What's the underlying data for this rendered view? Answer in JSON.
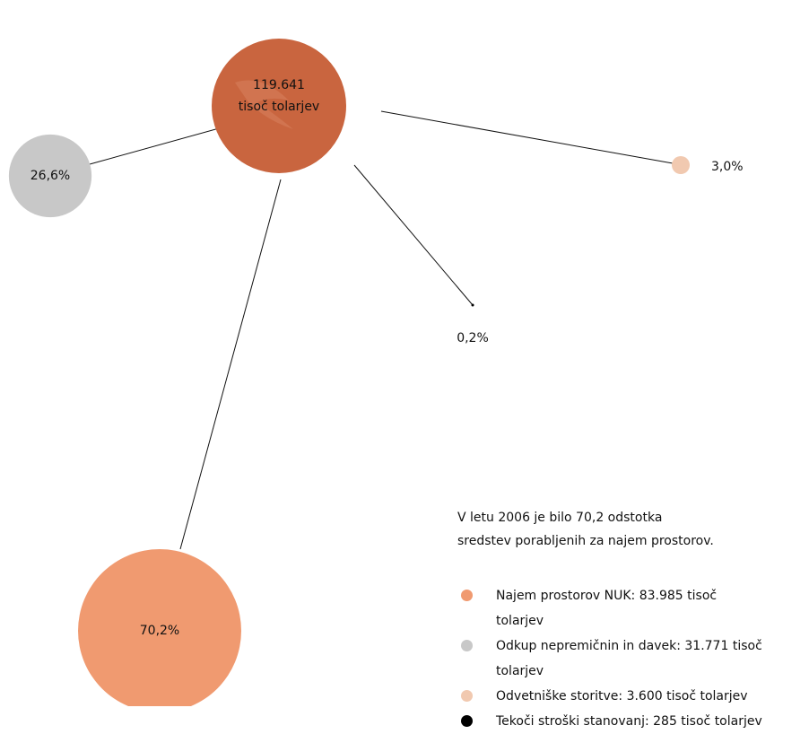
{
  "chart_data": {
    "type": "bubble",
    "center_value": "119.641",
    "center_unit": "tisoč tolarjev",
    "center_color": "#c9653f",
    "categories": [
      "Najem prostorov NUK: 83.985 tisoč tolarjev",
      "Odkup nepremičnin in davek: 31.771 tisoč tolarjev",
      "Odvetniške storitve: 3.600 tisoč tolarjev",
      "Tekoči stroški stanovanj: 285 tisoč tolarjev"
    ],
    "values": [
      70.2,
      26.6,
      3.0,
      0.2
    ],
    "value_labels": [
      "70,2%",
      "26,6%",
      "3,0%",
      "0,2%"
    ],
    "colors": [
      "#f09a70",
      "#c8c8c8",
      "#f1c9b0",
      "#000000"
    ],
    "annotation": [
      "V letu 2006 je bilo 70,2 odstotka",
      "sredstev porabljenih za najem prostorov."
    ]
  }
}
